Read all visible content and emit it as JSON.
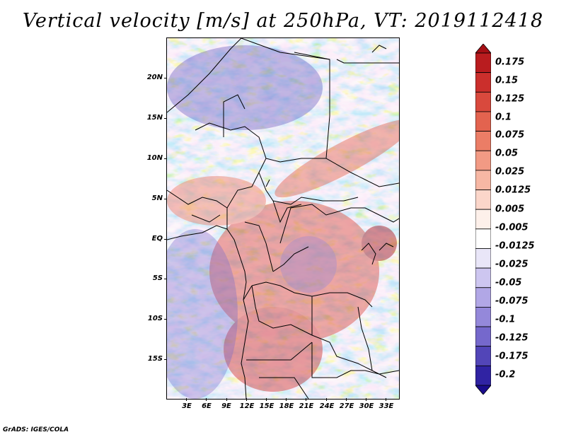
{
  "title": "Vertical velocity [m/s] at 250hPa, VT: 2019112418",
  "credit": "GrADS: IGES/COLA",
  "lat_labels": [
    "20N",
    "15N",
    "10N",
    "5N",
    "EQ",
    "5S",
    "10S",
    "15S"
  ],
  "lon_labels": [
    "3E",
    "6E",
    "9E",
    "12E",
    "15E",
    "18E",
    "21E",
    "24E",
    "27E",
    "30E",
    "33E"
  ],
  "colorbar": {
    "labels": [
      "0.175",
      "0.15",
      "0.125",
      "0.1",
      "0.075",
      "0.05",
      "0.025",
      "0.0125",
      "0.005",
      "-0.005",
      "-0.0125",
      "-0.025",
      "-0.05",
      "-0.075",
      "-0.1",
      "-0.125",
      "-0.175",
      "-0.2"
    ],
    "colors": [
      "#a50f15",
      "#b91c1f",
      "#cb2f2c",
      "#d9493d",
      "#e3634f",
      "#eb7d66",
      "#f29a84",
      "#f7b7a4",
      "#fbd6ca",
      "#fdf0ea",
      "#ffffff",
      "#e9e6f8",
      "#cdc6f0",
      "#b1a7e6",
      "#9488da",
      "#7568cc",
      "#5245b8",
      "#3023a3",
      "#1a0c8c"
    ]
  },
  "map": {
    "lon_range": [
      0,
      35
    ],
    "lat_range": [
      -20,
      25
    ],
    "field": "vertical velocity",
    "pressure_level": "250hPa"
  }
}
